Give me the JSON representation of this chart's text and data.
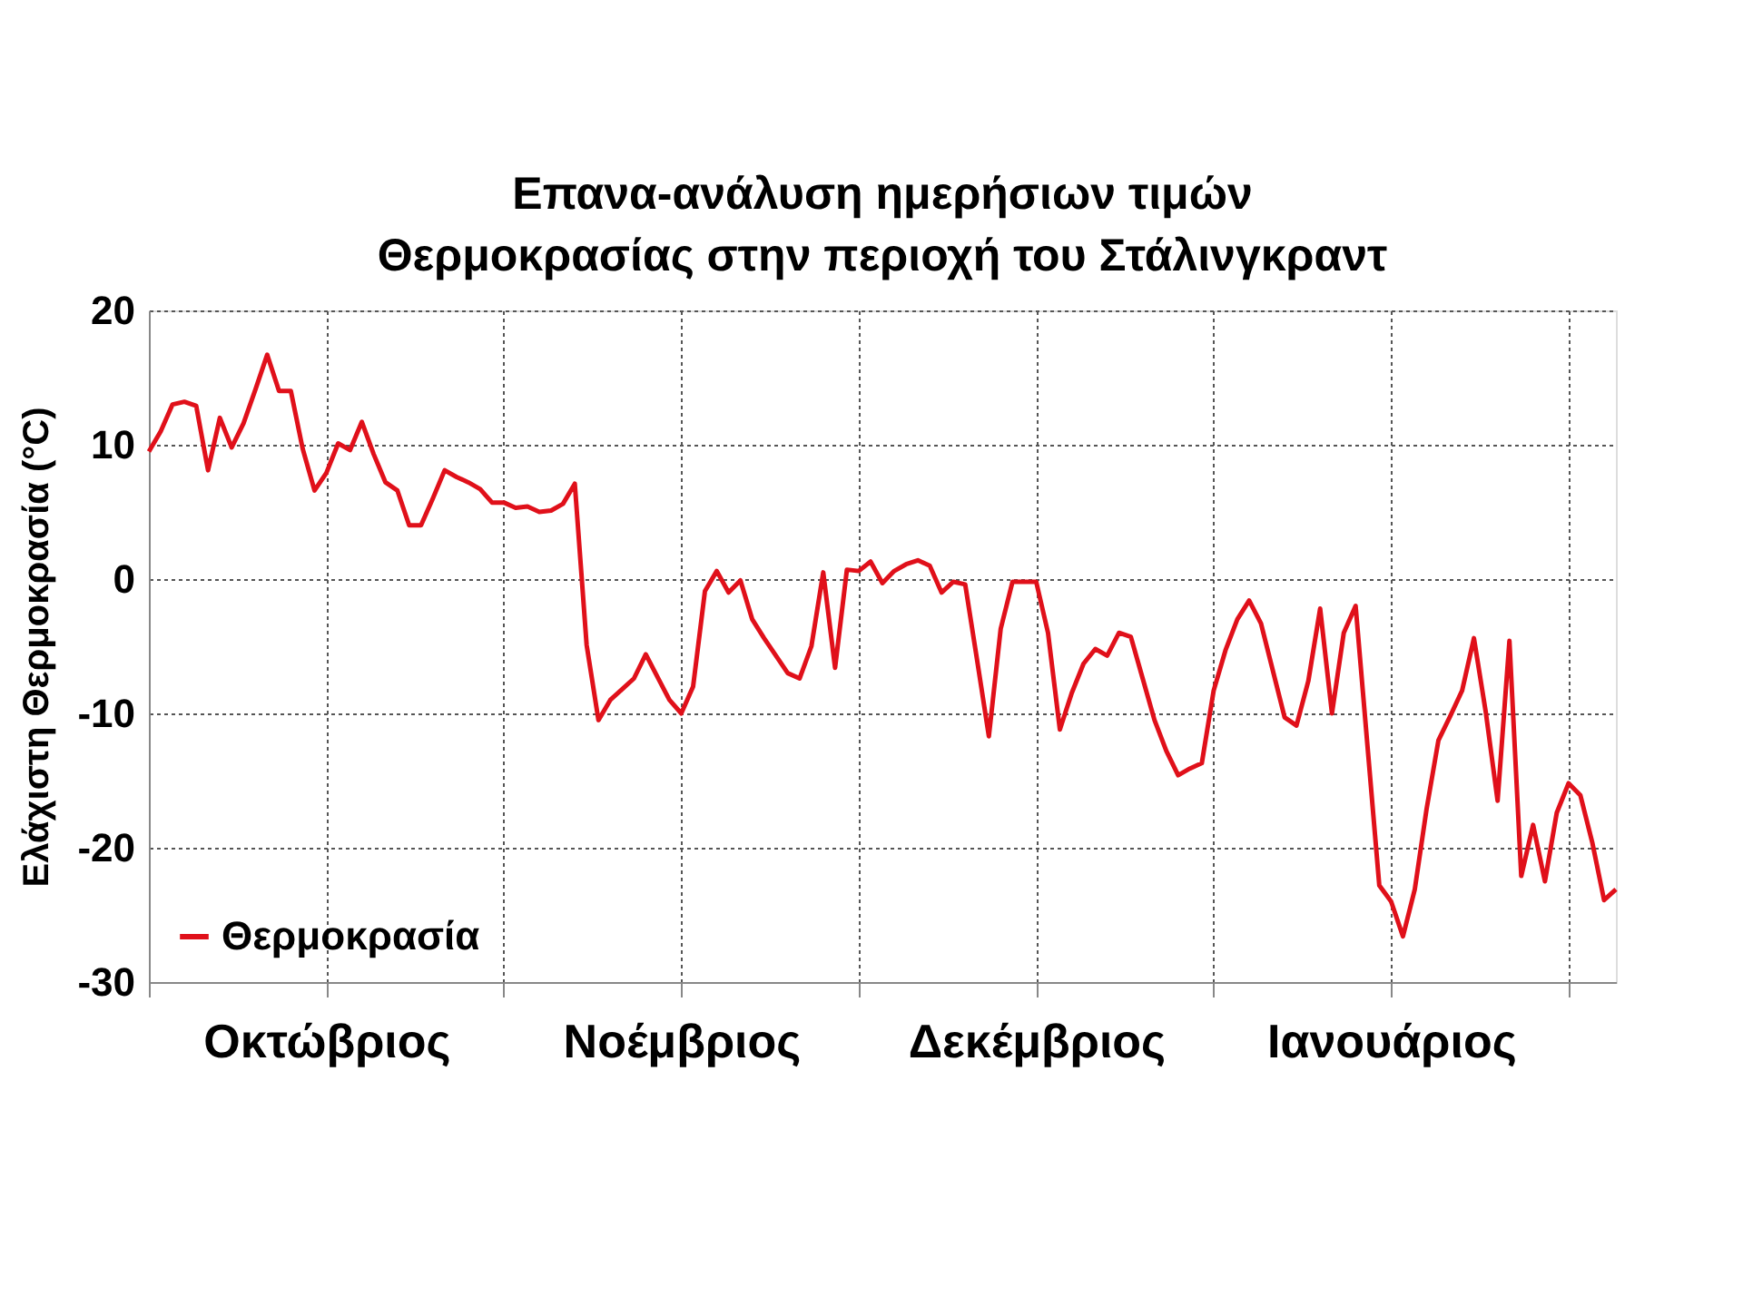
{
  "chart_data": {
    "type": "line",
    "title": "Επανα-ανάλυση ημερήσιων τιμών\nΘερμοκρασίας στην περιοχή του Στάλινγκραντ",
    "ylabel": "Ελάχιστη Θερμοκρασία  (°C)",
    "categories": [
      null,
      null,
      null,
      null,
      null,
      null,
      null,
      null,
      null,
      null,
      null,
      null,
      null,
      null,
      null,
      "Οκτώβριος",
      null,
      null,
      null,
      null,
      null,
      null,
      null,
      null,
      null,
      null,
      null,
      null,
      null,
      null,
      null,
      null,
      null,
      null,
      null,
      null,
      null,
      null,
      null,
      null,
      null,
      null,
      null,
      null,
      null,
      "Νοέμβριος",
      null,
      null,
      null,
      null,
      null,
      null,
      null,
      null,
      null,
      null,
      null,
      null,
      null,
      null,
      null,
      null,
      null,
      null,
      null,
      null,
      null,
      null,
      null,
      null,
      null,
      null,
      null,
      null,
      null,
      "Δεκέμβριος",
      null,
      null,
      null,
      null,
      null,
      null,
      null,
      null,
      null,
      null,
      null,
      null,
      null,
      null,
      null,
      null,
      null,
      null,
      null,
      null,
      null,
      null,
      null,
      null,
      null,
      null,
      null,
      null,
      null,
      "Ιανουάριος",
      null,
      null,
      null,
      null,
      null,
      null,
      null,
      null,
      null,
      null,
      null,
      null,
      null,
      null,
      null,
      null,
      null,
      null,
      null
    ],
    "ylim": [
      -30,
      20
    ],
    "yticks": [
      -30,
      -20,
      -10,
      0,
      10,
      20
    ],
    "grid": true,
    "legend": "bottom left",
    "line_style": "solid",
    "series": [
      {
        "name": "Θερμοκρασία",
        "color": "#e0101a",
        "values": [
          9.5,
          11.0,
          13.0,
          13.2,
          12.9,
          8.1,
          12.0,
          9.8,
          11.6,
          14.1,
          16.7,
          14.0,
          14.0,
          9.7,
          6.6,
          7.9,
          10.1,
          9.6,
          11.7,
          9.3,
          7.2,
          6.6,
          4.0,
          4.0,
          6.0,
          8.1,
          7.6,
          7.2,
          6.7,
          5.7,
          5.7,
          5.3,
          5.4,
          5.0,
          5.1,
          5.6,
          7.1,
          -4.9,
          -10.5,
          -9.0,
          -8.2,
          -7.4,
          -5.6,
          -7.3,
          -9.0,
          -10.0,
          -8.0,
          -0.9,
          0.6,
          -1.0,
          -0.1,
          -3.0,
          -4.4,
          -5.7,
          -7.0,
          -7.4,
          -5.0,
          0.5,
          -6.6,
          0.7,
          0.6,
          1.3,
          -0.3,
          0.6,
          1.1,
          1.4,
          1.0,
          -1.0,
          -0.2,
          -0.4,
          -6.0,
          -11.7,
          -3.7,
          -0.2,
          -0.2,
          -0.2,
          -4.0,
          -11.2,
          -8.5,
          -6.3,
          -5.2,
          -5.7,
          -4.0,
          -4.3,
          -7.4,
          -10.5,
          -12.8,
          -14.6,
          -14.1,
          -13.7,
          -8.3,
          -5.3,
          -3.0,
          -1.6,
          -3.3,
          -6.8,
          -10.3,
          -10.9,
          -7.6,
          -2.2,
          -10.0,
          -4.0,
          -2.0,
          -12.4,
          -22.8,
          -24.0,
          -26.6,
          -23.1,
          -17.1,
          -12.0,
          -10.2,
          -8.3,
          -4.4,
          -9.9,
          -16.5,
          -4.6,
          -22.1,
          -18.3,
          -22.5,
          -17.4,
          -15.2,
          -16.1,
          -19.6,
          -23.9,
          -23.1
        ]
      }
    ]
  }
}
